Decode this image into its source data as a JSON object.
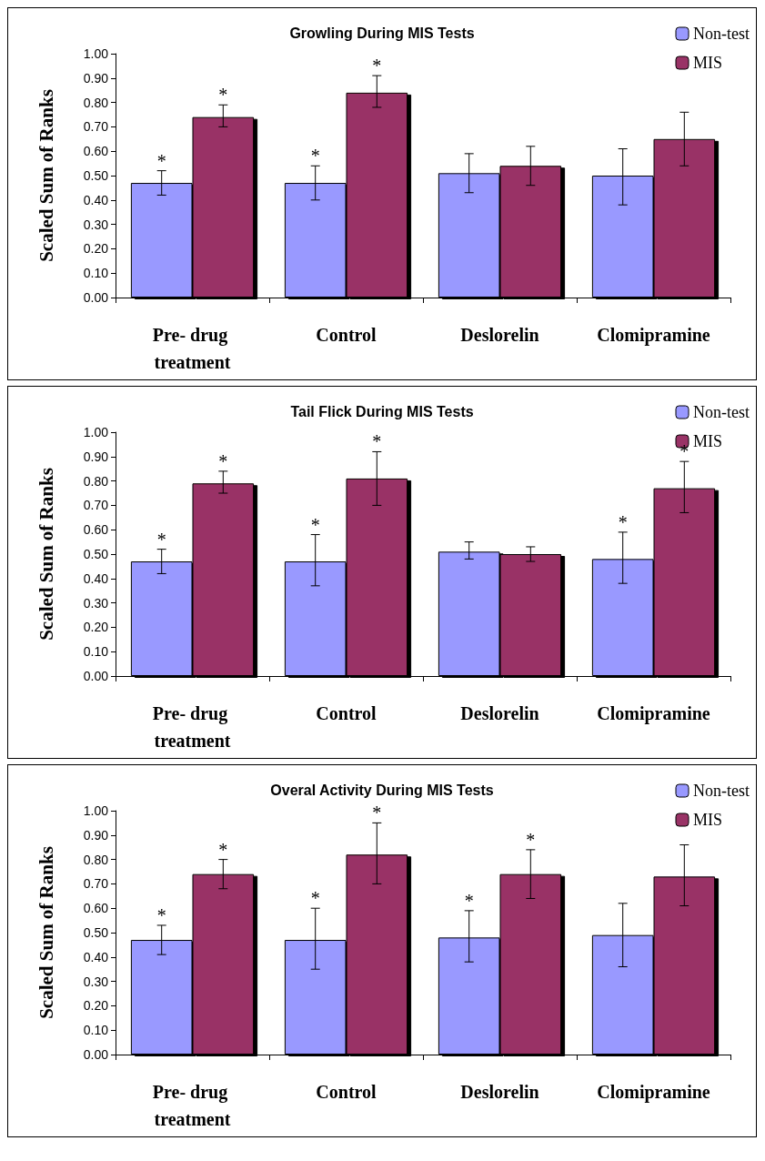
{
  "chart_data": [
    {
      "type": "bar",
      "title": "Growling During MIS Tests",
      "ylabel": "Scaled Sum of Ranks",
      "categories": [
        "Pre- drug treatment",
        "Control",
        "Deslorelin",
        "Clomipramine"
      ],
      "series": [
        {
          "name": "Non-test",
          "color": "#9999ff",
          "values": [
            0.47,
            0.47,
            0.51,
            0.5
          ],
          "errors": [
            [
              0.42,
              0.52
            ],
            [
              0.4,
              0.54
            ],
            [
              0.43,
              0.59
            ],
            [
              0.38,
              0.61
            ]
          ]
        },
        {
          "name": "MIS",
          "color": "#993366",
          "values": [
            0.74,
            0.84,
            0.54,
            0.65
          ],
          "errors": [
            [
              0.7,
              0.79
            ],
            [
              0.78,
              0.91
            ],
            [
              0.46,
              0.62
            ],
            [
              0.54,
              0.76
            ]
          ]
        }
      ],
      "ylim": [
        0,
        1
      ],
      "yticks": [
        {
          "value": 0,
          "label": "0.00"
        },
        {
          "value": 0.1,
          "label": "0.10"
        },
        {
          "value": 0.2,
          "label": "0.20"
        },
        {
          "value": 0.3,
          "label": "0.30"
        },
        {
          "value": 0.4,
          "label": "0.40"
        },
        {
          "value": 0.5,
          "label": "0.50"
        },
        {
          "value": 0.6,
          "label": "0.60"
        },
        {
          "value": 0.7,
          "label": "0.70"
        },
        {
          "value": 0.8,
          "label": "0.80"
        },
        {
          "value": 0.9,
          "label": "0.90"
        },
        {
          "value": 1,
          "label": "1.00"
        }
      ],
      "grid": false,
      "legend": "top right",
      "annotations": [
        {
          "text": "*",
          "x": "Pre- drug treatment",
          "y": 0.47
        },
        {
          "text": "*",
          "x": "Pre- drug treatment",
          "y": 0.74
        },
        {
          "text": "*",
          "x": "Control",
          "y": 0.47
        },
        {
          "text": "*",
          "x": "Control",
          "y": 0.84
        }
      ]
    },
    {
      "type": "bar",
      "title": "Tail Flick During MIS Tests",
      "ylabel": "Scaled Sum of Ranks",
      "categories": [
        "Pre- drug treatment",
        "Control",
        "Deslorelin",
        "Clomipramine"
      ],
      "series": [
        {
          "name": "Non-test",
          "color": "#9999ff",
          "values": [
            0.47,
            0.47,
            0.51,
            0.48
          ],
          "errors": [
            [
              0.42,
              0.52
            ],
            [
              0.37,
              0.58
            ],
            [
              0.48,
              0.55
            ],
            [
              0.38,
              0.59
            ]
          ]
        },
        {
          "name": "MIS",
          "color": "#993366",
          "values": [
            0.79,
            0.81,
            0.5,
            0.77
          ],
          "errors": [
            [
              0.75,
              0.84
            ],
            [
              0.7,
              0.92
            ],
            [
              0.47,
              0.53
            ],
            [
              0.67,
              0.88
            ]
          ]
        }
      ],
      "ylim": [
        0,
        1
      ],
      "yticks": [
        {
          "value": 0,
          "label": "0.00"
        },
        {
          "value": 0.1,
          "label": "0.10"
        },
        {
          "value": 0.2,
          "label": "0.20"
        },
        {
          "value": 0.3,
          "label": "0.30"
        },
        {
          "value": 0.4,
          "label": "0.40"
        },
        {
          "value": 0.5,
          "label": "0.50"
        },
        {
          "value": 0.6,
          "label": "0.60"
        },
        {
          "value": 0.7,
          "label": "0.70"
        },
        {
          "value": 0.8,
          "label": "0.80"
        },
        {
          "value": 0.9,
          "label": "0.90"
        },
        {
          "value": 1,
          "label": "1.00"
        }
      ],
      "grid": false,
      "legend": "top right",
      "annotations": [
        {
          "text": "*",
          "x": "Pre- drug treatment",
          "y": 0.47
        },
        {
          "text": "*",
          "x": "Pre- drug treatment",
          "y": 0.79
        },
        {
          "text": "*",
          "x": "Control",
          "y": 0.47
        },
        {
          "text": "*",
          "x": "Control",
          "y": 0.81
        },
        {
          "text": "*",
          "x": "Clomipramine",
          "y": 0.48
        },
        {
          "text": "*",
          "x": "Clomipramine",
          "y": 0.77
        }
      ]
    },
    {
      "type": "bar",
      "title": "Overal Activity During MIS Tests",
      "ylabel": "Scaled Sum of Ranks",
      "categories": [
        "Pre- drug treatment",
        "Control",
        "Deslorelin",
        "Clomipramine"
      ],
      "series": [
        {
          "name": "Non-test",
          "color": "#9999ff",
          "values": [
            0.47,
            0.47,
            0.48,
            0.49
          ],
          "errors": [
            [
              0.41,
              0.53
            ],
            [
              0.35,
              0.6
            ],
            [
              0.38,
              0.59
            ],
            [
              0.36,
              0.62
            ]
          ]
        },
        {
          "name": "MIS",
          "color": "#993366",
          "values": [
            0.74,
            0.82,
            0.74,
            0.73
          ],
          "errors": [
            [
              0.68,
              0.8
            ],
            [
              0.7,
              0.95
            ],
            [
              0.64,
              0.84
            ],
            [
              0.61,
              0.86
            ]
          ]
        }
      ],
      "ylim": [
        0,
        1
      ],
      "yticks": [
        {
          "value": 0,
          "label": "0.00"
        },
        {
          "value": 0.1,
          "label": "0.10"
        },
        {
          "value": 0.2,
          "label": "0.20"
        },
        {
          "value": 0.3,
          "label": "0.30"
        },
        {
          "value": 0.4,
          "label": "0.40"
        },
        {
          "value": 0.5,
          "label": "0.50"
        },
        {
          "value": 0.6,
          "label": "0.60"
        },
        {
          "value": 0.7,
          "label": "0.70"
        },
        {
          "value": 0.8,
          "label": "0.80"
        },
        {
          "value": 0.9,
          "label": "0.90"
        },
        {
          "value": 1,
          "label": "1.00"
        }
      ],
      "grid": false,
      "legend": "top right",
      "annotations": [
        {
          "text": "*",
          "x": "Pre- drug treatment",
          "y": 0.47
        },
        {
          "text": "*",
          "x": "Pre- drug treatment",
          "y": 0.74
        },
        {
          "text": "*",
          "x": "Control",
          "y": 0.47
        },
        {
          "text": "*",
          "x": "Control",
          "y": 0.82
        },
        {
          "text": "*",
          "x": "Deslorelin",
          "y": 0.48
        },
        {
          "text": "*",
          "x": "Deslorelin",
          "y": 0.74
        }
      ]
    }
  ]
}
